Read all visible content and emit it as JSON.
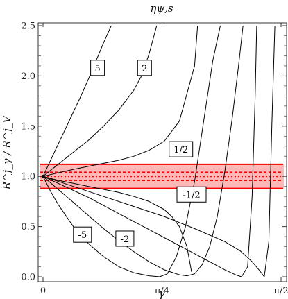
{
  "chart_data": {
    "type": "line",
    "title": "ηψ,s",
    "xlabel": "γ",
    "ylabel": "R^j_γ / R^j_V",
    "xlim": [
      0,
      1.5708
    ],
    "ylim": [
      0,
      2.5
    ],
    "x_ticks": [
      {
        "value": 0,
        "label": "0"
      },
      {
        "value": 0.7854,
        "label": "π/4"
      },
      {
        "value": 1.5708,
        "label": "π/2"
      }
    ],
    "y_ticks": [
      {
        "value": 0.0,
        "label": "0.0"
      },
      {
        "value": 0.5,
        "label": "0.5"
      },
      {
        "value": 1.0,
        "label": "1.0"
      },
      {
        "value": 1.5,
        "label": "1.5"
      },
      {
        "value": 2.0,
        "label": "2.0"
      },
      {
        "value": 2.5,
        "label": "2.5"
      }
    ],
    "band": {
      "lower": 0.88,
      "upper": 1.12,
      "inner_dashed": [
        0.96,
        1.04
      ],
      "center_dashed": 1.0,
      "color": "#ff0000"
    },
    "curve_color": "#000000",
    "series": [
      {
        "name": "5",
        "label_at": [
          0.36,
          2.08
        ],
        "x": [
          0,
          0.05,
          0.1,
          0.15,
          0.2,
          0.25,
          0.3,
          0.35,
          0.4,
          0.45
        ],
        "y": [
          1.0,
          1.16,
          1.32,
          1.48,
          1.64,
          1.8,
          1.97,
          2.15,
          2.33,
          2.5
        ]
      },
      {
        "name": "2",
        "label_at": [
          0.67,
          2.08
        ],
        "x": [
          0,
          0.1,
          0.2,
          0.3,
          0.4,
          0.5,
          0.6,
          0.65,
          0.7,
          0.75
        ],
        "y": [
          1.0,
          1.12,
          1.24,
          1.36,
          1.5,
          1.66,
          1.86,
          2.0,
          2.22,
          2.5
        ]
      },
      {
        "name": "1/2",
        "label_at": [
          0.91,
          1.27
        ],
        "x": [
          0,
          0.1,
          0.2,
          0.3,
          0.4,
          0.5,
          0.6,
          0.7,
          0.8,
          0.9,
          1.0,
          1.02
        ],
        "y": [
          1.0,
          1.035,
          1.07,
          1.1,
          1.13,
          1.16,
          1.2,
          1.26,
          1.35,
          1.55,
          2.1,
          2.5
        ]
      },
      {
        "name": "-1/2",
        "label_at": [
          0.98,
          0.82
        ],
        "x": [
          0,
          0.1,
          0.2,
          0.3,
          0.4,
          0.5,
          0.6,
          0.7,
          0.8,
          0.85,
          0.9,
          0.95,
          0.98
        ],
        "y": [
          1.0,
          0.96,
          0.93,
          0.9,
          0.87,
          0.84,
          0.8,
          0.75,
          0.67,
          0.6,
          0.5,
          0.3,
          0.05
        ]
      },
      {
        "name": "-5",
        "label_at": [
          0.26,
          0.42
        ],
        "x": [
          0,
          0.05,
          0.1,
          0.2,
          0.3,
          0.4,
          0.5,
          0.6,
          0.7,
          0.77,
          0.82,
          0.88,
          0.94,
          1.0,
          1.06,
          1.12,
          1.17
        ],
        "y": [
          1.0,
          0.85,
          0.72,
          0.5,
          0.33,
          0.2,
          0.1,
          0.04,
          0.01,
          0.0,
          0.03,
          0.2,
          0.5,
          0.95,
          1.55,
          2.15,
          2.5
        ]
      },
      {
        "name": "-2",
        "label_at": [
          0.54,
          0.38
        ],
        "x": [
          0,
          0.1,
          0.2,
          0.3,
          0.4,
          0.5,
          0.6,
          0.7,
          0.8,
          0.9,
          0.95,
          1.0,
          1.05,
          1.1,
          1.15,
          1.2,
          1.25,
          1.29,
          1.32
        ],
        "y": [
          1.0,
          0.87,
          0.74,
          0.61,
          0.48,
          0.36,
          0.25,
          0.15,
          0.07,
          0.02,
          0.01,
          0.03,
          0.12,
          0.3,
          0.6,
          1.05,
          1.6,
          2.1,
          2.5
        ]
      },
      {
        "name": "",
        "label_at": null,
        "x": [
          0,
          0.1,
          0.2,
          0.3,
          0.4,
          0.5,
          0.6,
          0.7,
          0.8,
          0.9,
          1.0,
          1.1,
          1.2,
          1.27,
          1.31,
          1.35,
          1.38,
          1.4,
          1.41
        ],
        "y": [
          1.0,
          0.93,
          0.86,
          0.79,
          0.71,
          0.63,
          0.55,
          0.47,
          0.39,
          0.31,
          0.23,
          0.15,
          0.07,
          0.02,
          0.0,
          0.1,
          0.8,
          1.8,
          2.5
        ]
      },
      {
        "name": "",
        "label_at": null,
        "x": [
          0,
          0.2,
          0.4,
          0.6,
          0.8,
          1.0,
          1.2,
          1.3,
          1.38,
          1.43,
          1.46,
          1.49,
          1.51,
          1.53
        ],
        "y": [
          1.0,
          0.9,
          0.8,
          0.7,
          0.6,
          0.48,
          0.35,
          0.26,
          0.15,
          0.06,
          0.0,
          0.35,
          1.5,
          2.5
        ]
      }
    ]
  }
}
